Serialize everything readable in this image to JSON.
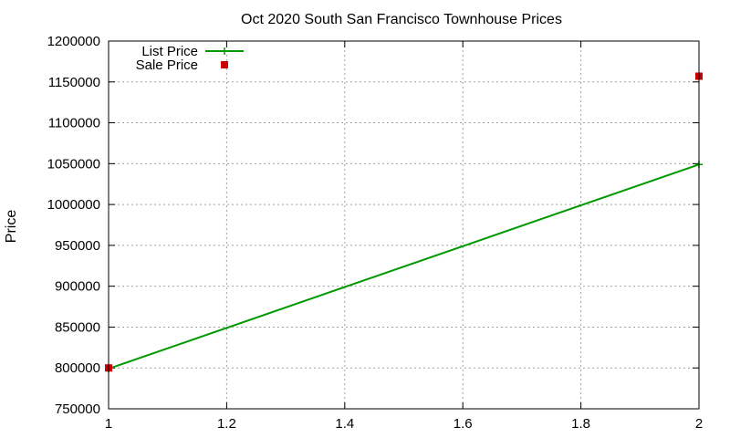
{
  "chart_data": {
    "type": "line",
    "title": "Oct 2020 South San Francisco Townhouse Prices",
    "xlabel": "",
    "ylabel": "Price",
    "xlim": [
      1,
      2
    ],
    "ylim": [
      750000,
      1200000
    ],
    "x_ticks": [
      "1",
      "1.2",
      "1.4",
      "1.6",
      "1.8",
      "2"
    ],
    "x_tick_values": [
      1,
      1.2,
      1.4,
      1.6,
      1.8,
      2
    ],
    "y_ticks": [
      "750000",
      "800000",
      "850000",
      "900000",
      "950000",
      "1000000",
      "1050000",
      "1100000",
      "1150000",
      "1200000"
    ],
    "y_tick_values": [
      750000,
      800000,
      850000,
      900000,
      950000,
      1000000,
      1050000,
      1100000,
      1150000,
      1200000
    ],
    "grid": true,
    "legend_position": "top-left",
    "series": [
      {
        "name": "List Price",
        "style": "line",
        "color": "#009900",
        "x": [
          1,
          2
        ],
        "y": [
          799000,
          1049000
        ]
      },
      {
        "name": "Sale Price",
        "style": "points",
        "color": "#cc0000",
        "x": [
          1,
          2
        ],
        "y": [
          800000,
          1157000
        ]
      }
    ]
  }
}
